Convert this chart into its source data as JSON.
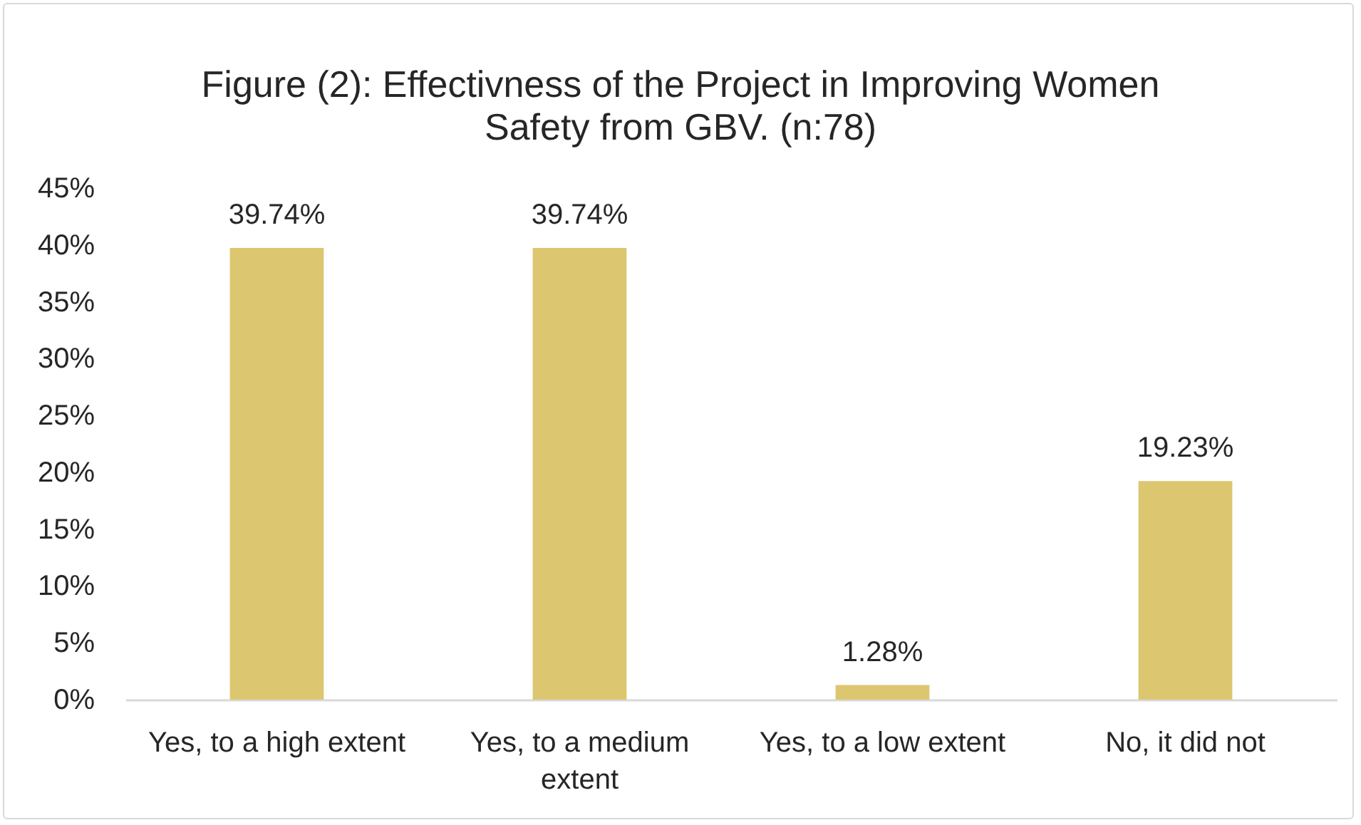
{
  "chart_data": {
    "type": "bar",
    "title": "Figure (2): Effectivness of the Project in Improving Women Safety from GBV. (n:78)",
    "categories": [
      "Yes, to a high extent",
      "Yes, to a medium extent",
      "Yes, to a low extent",
      "No, it did not"
    ],
    "values": [
      39.74,
      39.74,
      1.28,
      19.23
    ],
    "value_labels": [
      "39.74%",
      "39.74%",
      "1.28%",
      "19.23%"
    ],
    "color": "#ddc670",
    "ylim": [
      0,
      45
    ],
    "yticks": [
      {
        "value": 0,
        "label": "0%"
      },
      {
        "value": 5,
        "label": "5%"
      },
      {
        "value": 10,
        "label": "10%"
      },
      {
        "value": 15,
        "label": "15%"
      },
      {
        "value": 20,
        "label": "20%"
      },
      {
        "value": 25,
        "label": "25%"
      },
      {
        "value": 30,
        "label": "30%"
      },
      {
        "value": 35,
        "label": "35%"
      },
      {
        "value": 40,
        "label": "40%"
      },
      {
        "value": 45,
        "label": "45%"
      }
    ]
  }
}
